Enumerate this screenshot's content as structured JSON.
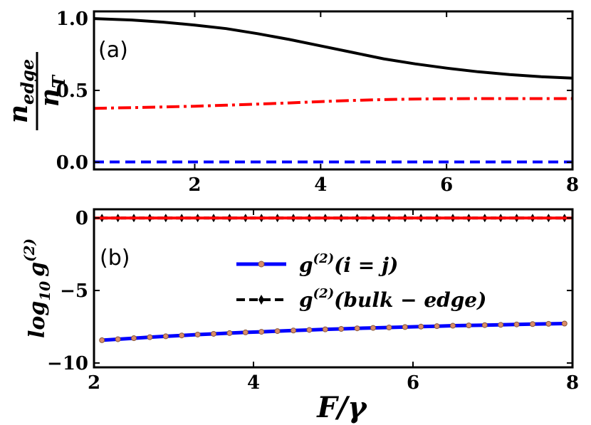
{
  "chart_data": [
    {
      "type": "line",
      "panel_label": "(a)",
      "ylabel_num": "n",
      "ylabel_num_sub": "edge",
      "ylabel_den": "n",
      "ylabel_den_sub": "T",
      "xlabel": "",
      "xlim": [
        0.4,
        8
      ],
      "ylim": [
        -0.05,
        1.05
      ],
      "xticks": [
        2,
        4,
        6,
        8
      ],
      "yticks": [
        0.0,
        0.5,
        1.0
      ],
      "ytick_labels": [
        "0.0",
        "0.5",
        "1.0"
      ],
      "grid": false,
      "series": [
        {
          "color": "#000000",
          "style": "solid",
          "x": [
            0.4,
            1.0,
            1.5,
            2.0,
            2.5,
            3.0,
            3.5,
            4.0,
            4.5,
            5.0,
            5.5,
            6.0,
            6.5,
            7.0,
            7.5,
            8.0
          ],
          "y": [
            1.0,
            0.99,
            0.975,
            0.955,
            0.93,
            0.895,
            0.855,
            0.81,
            0.765,
            0.72,
            0.685,
            0.655,
            0.63,
            0.61,
            0.595,
            0.585
          ]
        },
        {
          "color": "#ff0000",
          "style": "dashdot",
          "x": [
            0.4,
            1.0,
            1.5,
            2.0,
            2.5,
            3.0,
            3.5,
            4.0,
            4.5,
            5.0,
            5.5,
            6.0,
            6.5,
            7.0,
            7.5,
            8.0
          ],
          "y": [
            0.375,
            0.38,
            0.385,
            0.39,
            0.397,
            0.405,
            0.413,
            0.422,
            0.43,
            0.436,
            0.44,
            0.442,
            0.443,
            0.443,
            0.443,
            0.443
          ]
        },
        {
          "color": "#0000ff",
          "style": "dashed",
          "x": [
            0.4,
            8.0
          ],
          "y": [
            0.002,
            0.002
          ]
        }
      ]
    },
    {
      "type": "line",
      "panel_label": "(b)",
      "ylabel_main": "log",
      "ylabel_sub": "10",
      "ylabel_g": "g",
      "ylabel_sup": "(2)",
      "xlabel_main": "F/γ",
      "xlim": [
        2,
        8
      ],
      "ylim": [
        -10.3,
        0.6
      ],
      "xticks": [
        2,
        4,
        6,
        8
      ],
      "yticks": [
        0,
        -5,
        -10
      ],
      "ytick_labels": [
        "0",
        "−5",
        "−10"
      ],
      "grid": false,
      "legend": "center-right",
      "series": [
        {
          "name_g": "g",
          "name_sup": "(2)",
          "name_arg": "(i = j)",
          "color": "#0000ff",
          "marker_color": "#d98c6a",
          "style": "solid-markers",
          "x": [
            2.1,
            2.3,
            2.5,
            2.7,
            2.9,
            3.1,
            3.3,
            3.5,
            3.7,
            3.9,
            4.1,
            4.3,
            4.5,
            4.7,
            4.9,
            5.1,
            5.3,
            5.5,
            5.7,
            5.9,
            6.1,
            6.3,
            6.5,
            6.7,
            6.9,
            7.1,
            7.3,
            7.5,
            7.7,
            7.9
          ],
          "y": [
            -8.43,
            -8.36,
            -8.29,
            -8.22,
            -8.16,
            -8.1,
            -8.04,
            -7.99,
            -7.94,
            -7.89,
            -7.85,
            -7.8,
            -7.76,
            -7.72,
            -7.68,
            -7.65,
            -7.61,
            -7.58,
            -7.55,
            -7.52,
            -7.49,
            -7.46,
            -7.43,
            -7.41,
            -7.39,
            -7.37,
            -7.34,
            -7.32,
            -7.3,
            -7.28
          ]
        },
        {
          "name_g": "g",
          "name_sup": "(2)",
          "name_arg": "(bulk − edge)",
          "color": "#000000",
          "style": "dashed-diamonds",
          "x": [
            2.1,
            2.3,
            2.5,
            2.7,
            2.9,
            3.1,
            3.3,
            3.5,
            3.7,
            3.9,
            4.1,
            4.3,
            4.5,
            4.7,
            4.9,
            5.1,
            5.3,
            5.5,
            5.7,
            5.9,
            6.1,
            6.3,
            6.5,
            6.7,
            6.9,
            7.1,
            7.3,
            7.5,
            7.7,
            7.9
          ],
          "y": [
            0,
            0,
            0,
            0,
            0,
            0,
            0,
            0,
            0,
            0,
            0,
            0,
            0,
            0,
            0,
            0,
            0,
            0,
            0,
            0,
            0,
            0,
            0,
            0,
            0,
            0,
            0,
            0,
            0,
            0
          ]
        },
        {
          "color": "#ff0000",
          "style": "solid",
          "x": [
            2,
            8
          ],
          "y": [
            0,
            0
          ]
        }
      ]
    }
  ]
}
